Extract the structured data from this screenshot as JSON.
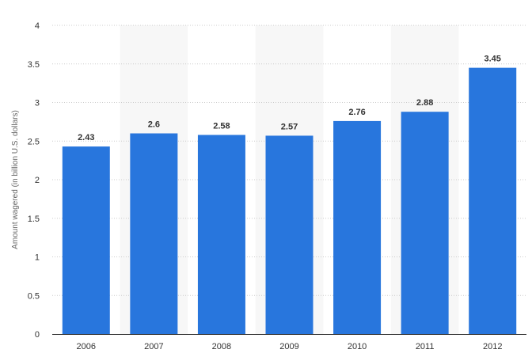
{
  "chart_data": {
    "type": "bar",
    "title": "",
    "xlabel": "",
    "ylabel": "Amount wagered (in billion U.S. dollars)",
    "categories": [
      "2006",
      "2007",
      "2008",
      "2009",
      "2010",
      "2011",
      "2012"
    ],
    "values": [
      2.43,
      2.6,
      2.58,
      2.57,
      2.76,
      2.88,
      3.45
    ],
    "data_labels": [
      "2.43",
      "2.6",
      "2.58",
      "2.57",
      "2.76",
      "2.88",
      "3.45"
    ],
    "ylim": [
      0,
      4
    ],
    "yticks": [
      0,
      0.5,
      1,
      1.5,
      2,
      2.5,
      3,
      3.5,
      4
    ],
    "ytick_labels": [
      "0",
      "0.5",
      "1",
      "1.5",
      "2",
      "2.5",
      "3",
      "3.5",
      "4"
    ],
    "grid": true,
    "legend": "none",
    "colors": {
      "bar": "#2876dd",
      "alt_band": "#f7f7f7",
      "grid": "#cccccc",
      "axis": "#333333",
      "text": "#333333"
    }
  }
}
